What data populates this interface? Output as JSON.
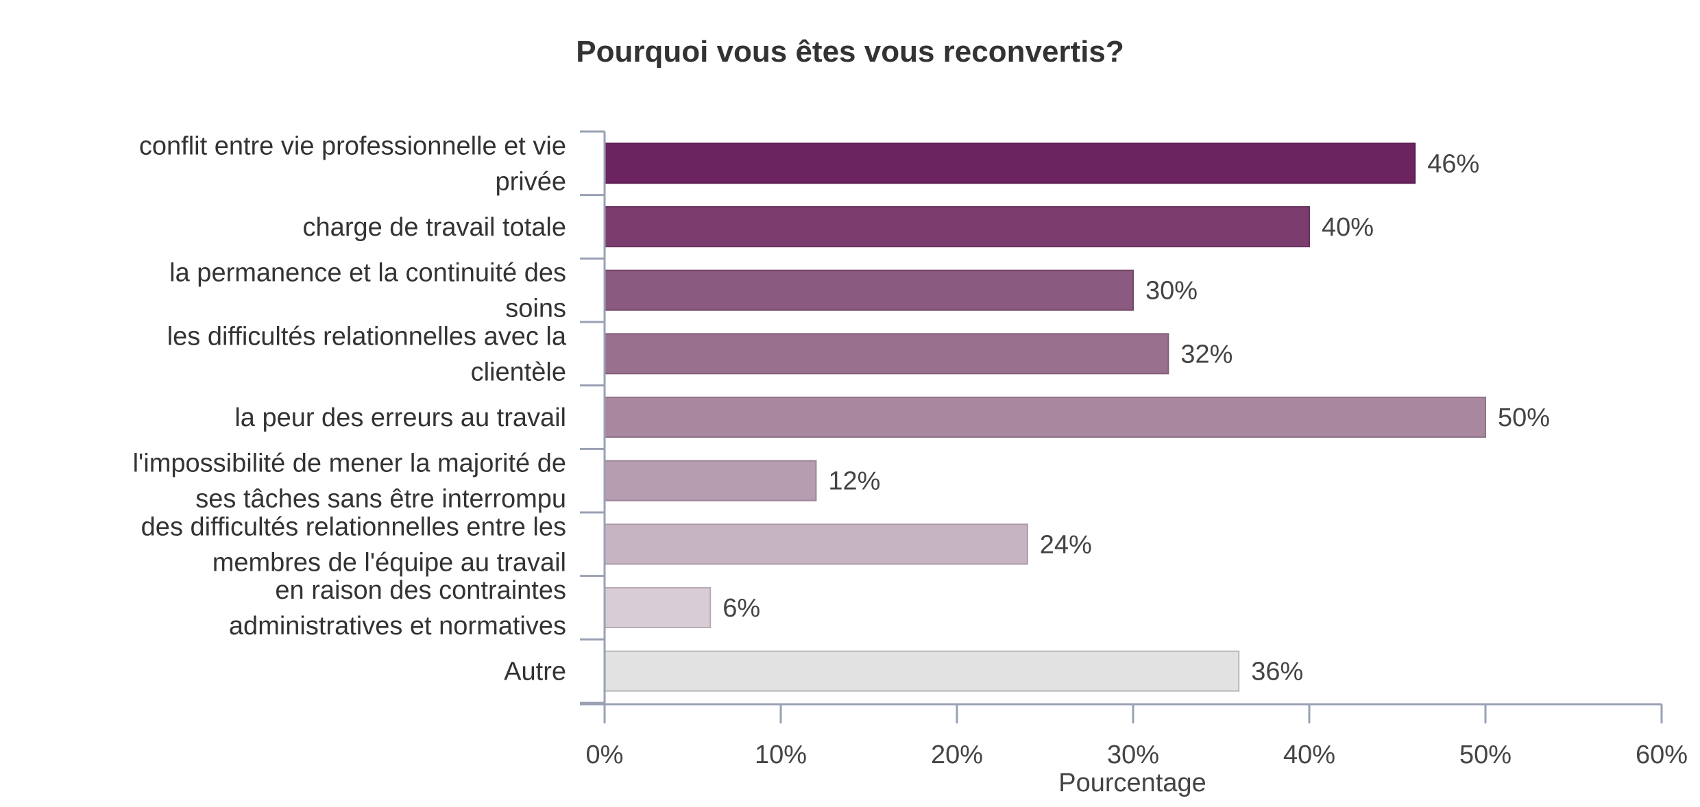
{
  "chart_data": {
    "type": "bar",
    "orientation": "horizontal",
    "title": "Pourquoi vous êtes vous reconvertis?",
    "xlabel": "Pourcentage",
    "ylabel": "",
    "xlim": [
      0,
      60
    ],
    "x_ticks": [
      {
        "value": 0,
        "label": "0%"
      },
      {
        "value": 10,
        "label": "10%"
      },
      {
        "value": 20,
        "label": "20%"
      },
      {
        "value": 30,
        "label": "30%"
      },
      {
        "value": 40,
        "label": "40%"
      },
      {
        "value": 50,
        "label": "50%"
      },
      {
        "value": 60,
        "label": "60%"
      }
    ],
    "grid": false,
    "legend": "none",
    "categories": [
      [
        "conflit entre vie professionnelle et vie",
        "privée"
      ],
      [
        "charge de travail totale"
      ],
      [
        "la permanence et la continuité des",
        "soins"
      ],
      [
        "les difficultés relationnelles avec la",
        "clientèle"
      ],
      [
        "la peur des erreurs au travail"
      ],
      [
        "l'impossibilité de mener la majorité de",
        "ses tâches sans être interrompu"
      ],
      [
        "des difficultés relationnelles entre les",
        "membres de l'équipe au travail"
      ],
      [
        "en raison des contraintes",
        "administratives et normatives"
      ],
      [
        "Autre"
      ]
    ],
    "values": [
      46,
      40,
      30,
      32,
      50,
      12,
      24,
      6,
      36
    ],
    "value_labels": [
      "46%",
      "40%",
      "30%",
      "32%",
      "50%",
      "12%",
      "24%",
      "6%",
      "36%"
    ],
    "colors": [
      "#6b2460",
      "#7a3d6e",
      "#8a5a80",
      "#98718f",
      "#a8879f",
      "#b69db0",
      "#c6b4c3",
      "#d8ccd5",
      "#e2e2e2"
    ],
    "border_colors": [
      "#5a1c50",
      "#68305e",
      "#74496b",
      "#825e7a",
      "#8f7288",
      "#9c8597",
      "#ab9aa8",
      "#b8aab4",
      "#b8b8b8"
    ]
  }
}
